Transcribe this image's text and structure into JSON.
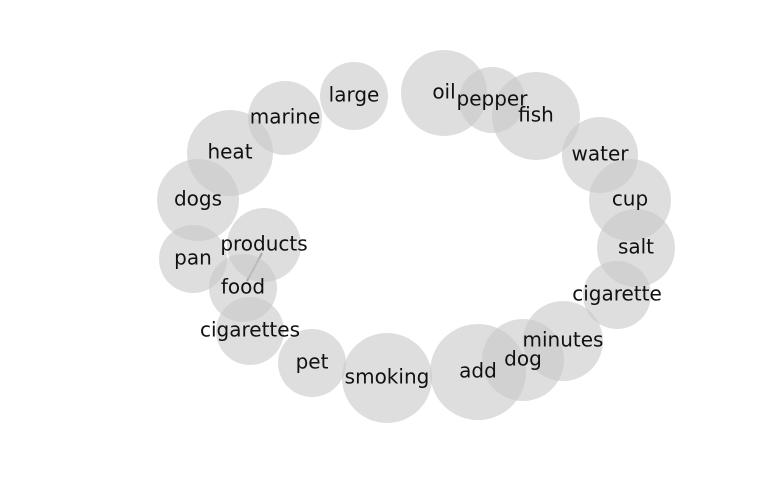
{
  "diagram": {
    "type": "word-bubble-cloud",
    "words": [
      {
        "label": "large"
      },
      {
        "label": "oil"
      },
      {
        "label": "pepper"
      },
      {
        "label": "fish"
      },
      {
        "label": "marine"
      },
      {
        "label": "heat"
      },
      {
        "label": "water"
      },
      {
        "label": "dogs"
      },
      {
        "label": "cup"
      },
      {
        "label": "products"
      },
      {
        "label": "salt"
      },
      {
        "label": "pan"
      },
      {
        "label": "food"
      },
      {
        "label": "cigarette"
      },
      {
        "label": "cigarettes"
      },
      {
        "label": "minutes"
      },
      {
        "label": "dog"
      },
      {
        "label": "pet"
      },
      {
        "label": "smoking"
      },
      {
        "label": "add"
      }
    ],
    "links": [
      {
        "source": "products",
        "target": "food"
      }
    ]
  }
}
